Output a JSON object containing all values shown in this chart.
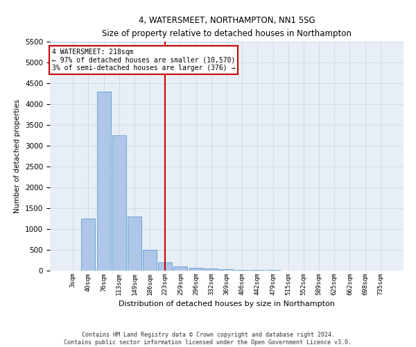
{
  "title": "4, WATERSMEET, NORTHAMPTON, NN1 5SG",
  "subtitle": "Size of property relative to detached houses in Northampton",
  "xlabel": "Distribution of detached houses by size in Northampton",
  "ylabel": "Number of detached properties",
  "footer_line1": "Contains HM Land Registry data © Crown copyright and database right 2024.",
  "footer_line2": "Contains public sector information licensed under the Open Government Licence v3.0.",
  "annotation_title": "4 WATERSMEET: 218sqm",
  "annotation_line1": "← 97% of detached houses are smaller (10,570)",
  "annotation_line2": "3% of semi-detached houses are larger (376) →",
  "bar_labels": [
    "3sqm",
    "40sqm",
    "76sqm",
    "113sqm",
    "149sqm",
    "186sqm",
    "223sqm",
    "259sqm",
    "296sqm",
    "332sqm",
    "369sqm",
    "406sqm",
    "442sqm",
    "479sqm",
    "515sqm",
    "552sqm",
    "589sqm",
    "625sqm",
    "662sqm",
    "698sqm",
    "735sqm"
  ],
  "bar_values": [
    0,
    1250,
    4300,
    3250,
    1300,
    500,
    200,
    100,
    75,
    50,
    30,
    20,
    15,
    10,
    5,
    3,
    2,
    1,
    1,
    0,
    0
  ],
  "bar_color": "#aec6e8",
  "bar_edge_color": "#5b9bd5",
  "red_line_index": 6,
  "red_line_color": "#cc0000",
  "annotation_box_color": "#cc0000",
  "ylim": [
    0,
    5500
  ],
  "yticks": [
    0,
    500,
    1000,
    1500,
    2000,
    2500,
    3000,
    3500,
    4000,
    4500,
    5000,
    5500
  ],
  "grid_color": "#c8d0dc",
  "background_color": "#e8eef5"
}
